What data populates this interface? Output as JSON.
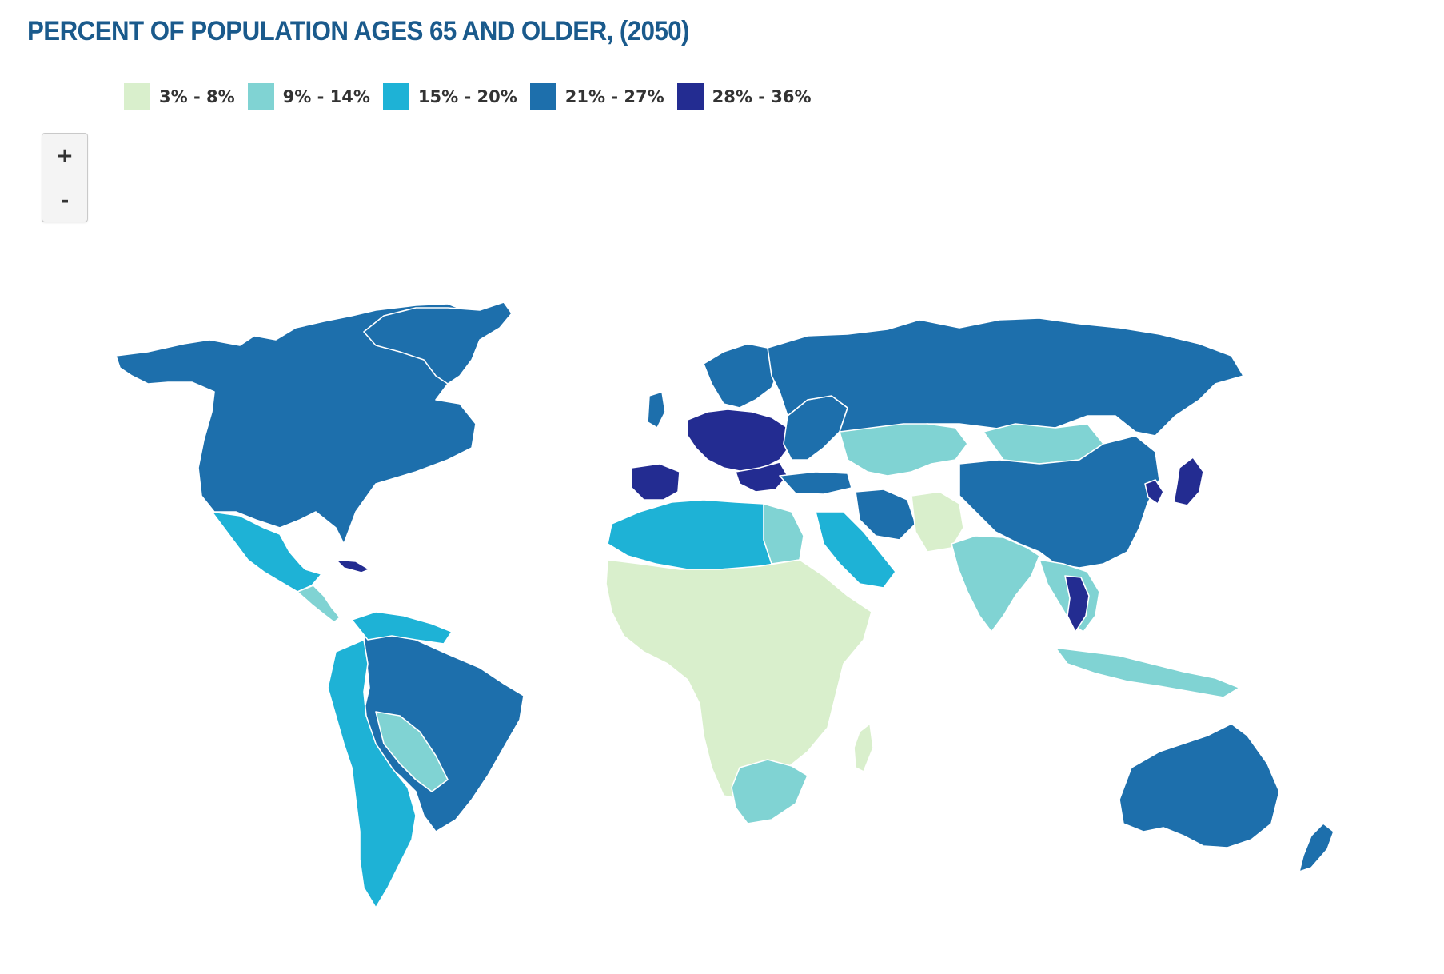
{
  "title": "PERCENT OF POPULATION AGES 65 AND OLDER, (2050)",
  "legend": [
    {
      "label": "3% - 8%",
      "color": "#d9efcc"
    },
    {
      "label": "9% - 14%",
      "color": "#80d3d3"
    },
    {
      "label": "15% - 20%",
      "color": "#1eb2d6"
    },
    {
      "label": "21% - 27%",
      "color": "#1d6fac"
    },
    {
      "label": "28% - 36%",
      "color": "#232c91"
    }
  ],
  "zoom": {
    "in_label": "+",
    "out_label": "-"
  }
}
